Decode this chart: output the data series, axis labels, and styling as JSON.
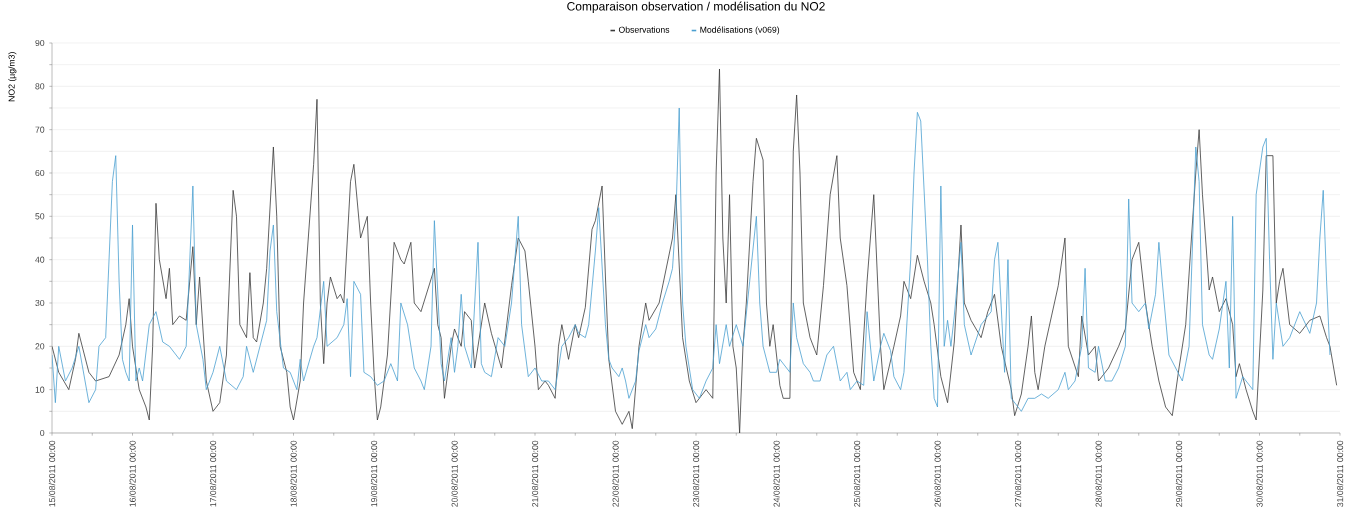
{
  "chart_data": {
    "type": "line",
    "title": "Comparaison observation / modélisation du NO2",
    "ylabel": "NO2 (µg/m3)",
    "xlim": [
      "2011-08-15T00:00",
      "2011-08-31T00:00"
    ],
    "xticks": [
      {
        "value": "2011-08-15T00:00",
        "label": "15/08/2011 00:00"
      },
      {
        "value": "2011-08-15T12:00",
        "label": null
      },
      {
        "value": "2011-08-16T00:00",
        "label": "16/08/2011 00:00"
      },
      {
        "value": "2011-08-16T12:00",
        "label": null
      },
      {
        "value": "2011-08-17T00:00",
        "label": "17/08/2011 00:00"
      },
      {
        "value": "2011-08-17T12:00",
        "label": null
      },
      {
        "value": "2011-08-18T00:00",
        "label": "18/08/2011 00:00"
      },
      {
        "value": "2011-08-18T12:00",
        "label": null
      },
      {
        "value": "2011-08-19T00:00",
        "label": "19/08/2011 00:00"
      },
      {
        "value": "2011-08-19T12:00",
        "label": null
      },
      {
        "value": "2011-08-20T00:00",
        "label": "20/08/2011 00:00"
      },
      {
        "value": "2011-08-20T12:00",
        "label": null
      },
      {
        "value": "2011-08-21T00:00",
        "label": "21/08/2011 00:00"
      },
      {
        "value": "2011-08-21T12:00",
        "label": null
      },
      {
        "value": "2011-08-22T00:00",
        "label": "22/08/2011 00:00"
      },
      {
        "value": "2011-08-22T12:00",
        "label": null
      },
      {
        "value": "2011-08-23T00:00",
        "label": "23/08/2011 00:00"
      },
      {
        "value": "2011-08-23T12:00",
        "label": null
      },
      {
        "value": "2011-08-24T00:00",
        "label": "24/08/2011 00:00"
      },
      {
        "value": "2011-08-24T12:00",
        "label": null
      },
      {
        "value": "2011-08-25T00:00",
        "label": "25/08/2011 00:00"
      },
      {
        "value": "2011-08-25T12:00",
        "label": null
      },
      {
        "value": "2011-08-26T00:00",
        "label": "26/08/2011 00:00"
      },
      {
        "value": "2011-08-26T12:00",
        "label": null
      },
      {
        "value": "2011-08-27T00:00",
        "label": "27/08/2011 00:00"
      },
      {
        "value": "2011-08-27T12:00",
        "label": null
      },
      {
        "value": "2011-08-28T00:00",
        "label": "28/08/2011 00:00"
      },
      {
        "value": "2011-08-28T12:00",
        "label": null
      },
      {
        "value": "2011-08-29T00:00",
        "label": "29/08/2011 00:00"
      },
      {
        "value": "2011-08-29T12:00",
        "label": null
      },
      {
        "value": "2011-08-30T00:00",
        "label": "30/08/2011 00:00"
      },
      {
        "value": "2011-08-30T12:00",
        "label": null
      },
      {
        "value": "2011-08-31T00:00",
        "label": "31/08/2011 00:00"
      }
    ],
    "ylim": [
      0,
      90
    ],
    "yticks": [
      0,
      {
        "value": 5,
        "label": null
      },
      10,
      {
        "value": 15,
        "label": null
      },
      20,
      {
        "value": 25,
        "label": null
      },
      30,
      {
        "value": 35,
        "label": null
      },
      40,
      {
        "value": 45,
        "label": null
      },
      50,
      {
        "value": 55,
        "label": null
      },
      60,
      {
        "value": 65,
        "label": null
      },
      70,
      {
        "value": 75,
        "label": null
      },
      80,
      {
        "value": 85,
        "label": null
      },
      90
    ],
    "grid": "y",
    "legend": "top",
    "series": [
      {
        "name": "Observations",
        "color": "#3a3a3a",
        "x": [
          "2011-08-15T00:00",
          "2011-08-15T02:00",
          "2011-08-15T05:00",
          "2011-08-15T07:00",
          "2011-08-15T08:00",
          "2011-08-15T11:00",
          "2011-08-15T13:00",
          "2011-08-15T17:00",
          "2011-08-15T20:00",
          "2011-08-15T22:00",
          "2011-08-15T23:00",
          "2011-08-16T00:00",
          "2011-08-16T02:00",
          "2011-08-16T04:00",
          "2011-08-16T05:00",
          "2011-08-16T06:00",
          "2011-08-16T07:00",
          "2011-08-16T08:00",
          "2011-08-16T10:00",
          "2011-08-16T11:00",
          "2011-08-16T12:00",
          "2011-08-16T14:00",
          "2011-08-16T16:00",
          "2011-08-16T18:00",
          "2011-08-16T19:00",
          "2011-08-16T20:00",
          "2011-08-16T21:00",
          "2011-08-16T22:00",
          "2011-08-17T00:00",
          "2011-08-17T02:00",
          "2011-08-17T04:00",
          "2011-08-17T06:00",
          "2011-08-17T07:00",
          "2011-08-17T08:00",
          "2011-08-17T10:00",
          "2011-08-17T11:00",
          "2011-08-17T12:00",
          "2011-08-17T13:00",
          "2011-08-17T15:00",
          "2011-08-17T16:00",
          "2011-08-17T18:00",
          "2011-08-17T19:00",
          "2011-08-17T20:00",
          "2011-08-17T22:00",
          "2011-08-17T23:00",
          "2011-08-18T00:00",
          "2011-08-18T02:00",
          "2011-08-18T03:00",
          "2011-08-18T06:00",
          "2011-08-18T07:00",
          "2011-08-18T08:00",
          "2011-08-18T09:00",
          "2011-08-18T10:00",
          "2011-08-18T11:00",
          "2011-08-18T13:00",
          "2011-08-18T14:00",
          "2011-08-18T15:00",
          "2011-08-18T17:00",
          "2011-08-18T18:00",
          "2011-08-18T20:00",
          "2011-08-18T22:00",
          "2011-08-18T23:00",
          "2011-08-19T00:00",
          "2011-08-19T01:00",
          "2011-08-19T02:00",
          "2011-08-19T04:00",
          "2011-08-19T06:00",
          "2011-08-19T08:00",
          "2011-08-19T09:00",
          "2011-08-19T11:00",
          "2011-08-19T12:00",
          "2011-08-19T14:00",
          "2011-08-19T16:00",
          "2011-08-19T18:00",
          "2011-08-19T19:00",
          "2011-08-19T20:00",
          "2011-08-19T21:00",
          "2011-08-19T23:00",
          "2011-08-20T00:00",
          "2011-08-20T02:00",
          "2011-08-20T03:00",
          "2011-08-20T05:00",
          "2011-08-20T06:00",
          "2011-08-20T07:00",
          "2011-08-20T09:00",
          "2011-08-20T11:00",
          "2011-08-20T14:00",
          "2011-08-20T17:00",
          "2011-08-20T19:00",
          "2011-08-20T21:00",
          "2011-08-20T22:00",
          "2011-08-21T00:00",
          "2011-08-21T01:00",
          "2011-08-21T03:00",
          "2011-08-21T04:00",
          "2011-08-21T06:00",
          "2011-08-21T07:00",
          "2011-08-21T08:00",
          "2011-08-21T10:00",
          "2011-08-21T12:00",
          "2011-08-21T13:00",
          "2011-08-21T15:00",
          "2011-08-21T17:00",
          "2011-08-21T18:00",
          "2011-08-21T20:00",
          "2011-08-21T21:00",
          "2011-08-21T22:00",
          "2011-08-22T00:00",
          "2011-08-22T02:00",
          "2011-08-22T04:00",
          "2011-08-22T05:00",
          "2011-08-22T07:00",
          "2011-08-22T09:00",
          "2011-08-22T10:00",
          "2011-08-22T13:00",
          "2011-08-22T17:00",
          "2011-08-22T18:00",
          "2011-08-22T20:00",
          "2011-08-22T22:00",
          "2011-08-23T00:00",
          "2011-08-23T03:00",
          "2011-08-23T05:00",
          "2011-08-23T06:00",
          "2011-08-23T07:00",
          "2011-08-23T08:00",
          "2011-08-23T09:00",
          "2011-08-23T10:00",
          "2011-08-23T11:00",
          "2011-08-23T12:00",
          "2011-08-23T13:00",
          "2011-08-23T14:00",
          "2011-08-23T15:00",
          "2011-08-23T17:00",
          "2011-08-23T18:00",
          "2011-08-23T20:00",
          "2011-08-23T21:00",
          "2011-08-23T22:00",
          "2011-08-23T23:00",
          "2011-08-24T01:00",
          "2011-08-24T02:00",
          "2011-08-24T04:00",
          "2011-08-24T05:00",
          "2011-08-24T06:00",
          "2011-08-24T07:00",
          "2011-08-24T08:00",
          "2011-08-24T10:00",
          "2011-08-24T12:00",
          "2011-08-24T14:00",
          "2011-08-24T16:00",
          "2011-08-24T18:00",
          "2011-08-24T19:00",
          "2011-08-24T21:00",
          "2011-08-24T23:00",
          "2011-08-25T01:00",
          "2011-08-25T03:00",
          "2011-08-25T05:00",
          "2011-08-25T07:00",
          "2011-08-25T08:00",
          "2011-08-25T11:00",
          "2011-08-25T13:00",
          "2011-08-25T14:00",
          "2011-08-25T16:00",
          "2011-08-25T18:00",
          "2011-08-25T20:00",
          "2011-08-25T22:00",
          "2011-08-25T23:00",
          "2011-08-26T01:00",
          "2011-08-26T03:00",
          "2011-08-26T05:00",
          "2011-08-26T07:00",
          "2011-08-26T08:00",
          "2011-08-26T10:00",
          "2011-08-26T13:00",
          "2011-08-26T15:00",
          "2011-08-26T17:00",
          "2011-08-26T19:00",
          "2011-08-26T22:00",
          "2011-08-26T23:00",
          "2011-08-27T01:00",
          "2011-08-27T03:00",
          "2011-08-27T04:00",
          "2011-08-27T05:00",
          "2011-08-27T06:00",
          "2011-08-27T08:00",
          "2011-08-27T10:00",
          "2011-08-27T12:00",
          "2011-08-27T14:00",
          "2011-08-27T15:00",
          "2011-08-27T18:00",
          "2011-08-27T19:00",
          "2011-08-27T21:00",
          "2011-08-27T23:00",
          "2011-08-28T00:00",
          "2011-08-28T03:00",
          "2011-08-28T06:00",
          "2011-08-28T08:00",
          "2011-08-28T10:00",
          "2011-08-28T12:00",
          "2011-08-28T14:00",
          "2011-08-28T16:00",
          "2011-08-28T18:00",
          "2011-08-28T20:00",
          "2011-08-28T22:00",
          "2011-08-29T00:00",
          "2011-08-29T02:00",
          "2011-08-29T05:00",
          "2011-08-29T06:00",
          "2011-08-29T07:00",
          "2011-08-29T09:00",
          "2011-08-29T10:00",
          "2011-08-29T12:00",
          "2011-08-29T14:00",
          "2011-08-29T16:00",
          "2011-08-29T17:00",
          "2011-08-29T18:00",
          "2011-08-29T20:00",
          "2011-08-29T22:00",
          "2011-08-29T23:00",
          "2011-08-30T01:00",
          "2011-08-30T02:00",
          "2011-08-30T04:00",
          "2011-08-30T05:00",
          "2011-08-30T06:00",
          "2011-08-30T07:00",
          "2011-08-30T09:00",
          "2011-08-30T12:00",
          "2011-08-30T15:00",
          "2011-08-30T18:00",
          "2011-08-30T20:00",
          "2011-08-30T21:00",
          "2011-08-30T23:00"
        ],
        "values": [
          20,
          14,
          10,
          17,
          23,
          14,
          12,
          13,
          18,
          25,
          31,
          20,
          10,
          6,
          3,
          20,
          53,
          40,
          31,
          38,
          25,
          27,
          26,
          43,
          25,
          36,
          24,
          12,
          5,
          7,
          18,
          56,
          50,
          25,
          22,
          37,
          22,
          21,
          30,
          38,
          66,
          50,
          20,
          14,
          6,
          3,
          12,
          30,
          62,
          77,
          30,
          16,
          30,
          36,
          31,
          32,
          30,
          58,
          62,
          45,
          50,
          30,
          14,
          3,
          6,
          18,
          44,
          40,
          39,
          44,
          30,
          28,
          33,
          38,
          25,
          22,
          8,
          20,
          24,
          20,
          28,
          26,
          15,
          20,
          30,
          23,
          15,
          34,
          45,
          42,
          35,
          20,
          10,
          12,
          11,
          8,
          20,
          25,
          17,
          25,
          22,
          29,
          47,
          49,
          57,
          36,
          17,
          5,
          2,
          5,
          1,
          20,
          30,
          26,
          30,
          45,
          55,
          22,
          12,
          7,
          10,
          8,
          60,
          84,
          45,
          30,
          55,
          20,
          15,
          0,
          20,
          30,
          58,
          68,
          63,
          30,
          20,
          25,
          11,
          8,
          8,
          65,
          78,
          60,
          30,
          22,
          18,
          34,
          55,
          64,
          45,
          34,
          14,
          10,
          35,
          55,
          20,
          10,
          20,
          27,
          35,
          31,
          41,
          35,
          30,
          25,
          13,
          7,
          21,
          48,
          30,
          26,
          22,
          28,
          32,
          20,
          10,
          4,
          9,
          20,
          27,
          14,
          10,
          20,
          27,
          34,
          45,
          20,
          13,
          27,
          18,
          20,
          12,
          15,
          20,
          24,
          40,
          44,
          30,
          20,
          12,
          6,
          4,
          15,
          25,
          60,
          70,
          55,
          33,
          36,
          28,
          31,
          25,
          13,
          16,
          10,
          5,
          3,
          33,
          64,
          64,
          30,
          35,
          38,
          25,
          23,
          26,
          27,
          22,
          20,
          11
        ]
      },
      {
        "name": "Modélisations (v069)",
        "color": "#4a9fd0",
        "x": [
          "2011-08-15T00:00",
          "2011-08-15T01:00",
          "2011-08-15T02:00",
          "2011-08-15T04:00",
          "2011-08-15T06:00",
          "2011-08-15T08:00",
          "2011-08-15T11:00",
          "2011-08-15T13:00",
          "2011-08-15T14:00",
          "2011-08-15T16:00",
          "2011-08-15T17:00",
          "2011-08-15T18:00",
          "2011-08-15T19:00",
          "2011-08-15T20:00",
          "2011-08-15T21:00",
          "2011-08-15T22:00",
          "2011-08-15T23:00",
          "2011-08-16T00:00",
          "2011-08-16T01:00",
          "2011-08-16T02:00",
          "2011-08-16T03:00",
          "2011-08-16T05:00",
          "2011-08-16T07:00",
          "2011-08-16T09:00",
          "2011-08-16T11:00",
          "2011-08-16T14:00",
          "2011-08-16T16:00",
          "2011-08-16T18:00",
          "2011-08-16T19:00",
          "2011-08-16T21:00",
          "2011-08-16T22:00",
          "2011-08-17T00:00",
          "2011-08-17T02:00",
          "2011-08-17T04:00",
          "2011-08-17T07:00",
          "2011-08-17T09:00",
          "2011-08-17T10:00",
          "2011-08-17T12:00",
          "2011-08-17T14:00",
          "2011-08-17T16:00",
          "2011-08-17T17:00",
          "2011-08-17T18:00",
          "2011-08-17T19:00",
          "2011-08-17T21:00",
          "2011-08-17T23:00",
          "2011-08-18T01:00",
          "2011-08-18T02:00",
          "2011-08-18T03:00",
          "2011-08-18T06:00",
          "2011-08-18T07:00",
          "2011-08-18T09:00",
          "2011-08-18T10:00",
          "2011-08-18T13:00",
          "2011-08-18T15:00",
          "2011-08-18T16:00",
          "2011-08-18T17:00",
          "2011-08-18T18:00",
          "2011-08-18T20:00",
          "2011-08-18T21:00",
          "2011-08-18T23:00",
          "2011-08-19T01:00",
          "2011-08-19T03:00",
          "2011-08-19T05:00",
          "2011-08-19T07:00",
          "2011-08-19T08:00",
          "2011-08-19T10:00",
          "2011-08-19T12:00",
          "2011-08-19T14:00",
          "2011-08-19T15:00",
          "2011-08-19T17:00",
          "2011-08-19T18:00",
          "2011-08-19T20:00",
          "2011-08-19T21:00",
          "2011-08-19T23:00",
          "2011-08-20T00:00",
          "2011-08-20T01:00",
          "2011-08-20T02:00",
          "2011-08-20T03:00",
          "2011-08-20T05:00",
          "2011-08-20T07:00",
          "2011-08-20T08:00",
          "2011-08-20T09:00",
          "2011-08-20T11:00",
          "2011-08-20T13:00",
          "2011-08-20T15:00",
          "2011-08-20T17:00",
          "2011-08-20T19:00",
          "2011-08-20T20:00",
          "2011-08-20T22:00",
          "2011-08-21T00:00",
          "2011-08-21T02:00",
          "2011-08-21T04:00",
          "2011-08-21T06:00",
          "2011-08-21T08:00",
          "2011-08-21T10:00",
          "2011-08-21T12:00",
          "2011-08-21T13:00",
          "2011-08-21T15:00",
          "2011-08-21T16:00",
          "2011-08-21T18:00",
          "2011-08-21T19:00",
          "2011-08-21T21:00",
          "2011-08-21T22:00",
          "2011-08-21T23:00",
          "2011-08-22T01:00",
          "2011-08-22T02:00",
          "2011-08-22T03:00",
          "2011-08-22T04:00",
          "2011-08-22T06:00",
          "2011-08-22T07:00",
          "2011-08-22T09:00",
          "2011-08-22T10:00",
          "2011-08-22T12:00",
          "2011-08-22T14:00",
          "2011-08-22T16:00",
          "2011-08-22T17:00",
          "2011-08-22T18:00",
          "2011-08-22T19:00",
          "2011-08-22T20:00",
          "2011-08-22T21:00",
          "2011-08-22T23:00",
          "2011-08-23T01:00",
          "2011-08-23T03:00",
          "2011-08-23T05:00",
          "2011-08-23T06:00",
          "2011-08-23T07:00",
          "2011-08-23T09:00",
          "2011-08-23T10:00",
          "2011-08-23T12:00",
          "2011-08-23T14:00",
          "2011-08-23T16:00",
          "2011-08-23T18:00",
          "2011-08-23T19:00",
          "2011-08-23T20:00",
          "2011-08-23T22:00",
          "2011-08-24T00:00",
          "2011-08-24T01:00",
          "2011-08-24T04:00",
          "2011-08-24T05:00",
          "2011-08-24T06:00",
          "2011-08-24T08:00",
          "2011-08-24T10:00",
          "2011-08-24T11:00",
          "2011-08-24T13:00",
          "2011-08-24T15:00",
          "2011-08-24T17:00",
          "2011-08-24T19:00",
          "2011-08-24T21:00",
          "2011-08-24T22:00",
          "2011-08-25T00:00",
          "2011-08-25T02:00",
          "2011-08-25T03:00",
          "2011-08-25T05:00",
          "2011-08-25T07:00",
          "2011-08-25T08:00",
          "2011-08-25T10:00",
          "2011-08-25T11:00",
          "2011-08-25T13:00",
          "2011-08-25T14:00",
          "2011-08-25T16:00",
          "2011-08-25T17:00",
          "2011-08-25T18:00",
          "2011-08-25T19:00",
          "2011-08-25T21:00",
          "2011-08-25T22:00",
          "2011-08-25T23:00",
          "2011-08-26T00:00",
          "2011-08-26T01:00",
          "2011-08-26T02:00",
          "2011-08-26T03:00",
          "2011-08-26T04:00",
          "2011-08-26T05:00",
          "2011-08-26T07:00",
          "2011-08-26T08:00",
          "2011-08-26T10:00",
          "2011-08-26T13:00",
          "2011-08-26T16:00",
          "2011-08-26T17:00",
          "2011-08-26T18:00",
          "2011-08-26T20:00",
          "2011-08-26T21:00",
          "2011-08-26T22:00",
          "2011-08-27T00:00",
          "2011-08-27T01:00",
          "2011-08-27T03:00",
          "2011-08-27T05:00",
          "2011-08-27T07:00",
          "2011-08-27T09:00",
          "2011-08-27T12:00",
          "2011-08-27T14:00",
          "2011-08-27T15:00",
          "2011-08-27T17:00",
          "2011-08-27T19:00",
          "2011-08-27T20:00",
          "2011-08-27T21:00",
          "2011-08-27T23:00",
          "2011-08-28T00:00",
          "2011-08-28T02:00",
          "2011-08-28T04:00",
          "2011-08-28T06:00",
          "2011-08-28T08:00",
          "2011-08-28T09:00",
          "2011-08-28T10:00",
          "2011-08-28T12:00",
          "2011-08-28T14:00",
          "2011-08-28T15:00",
          "2011-08-28T17:00",
          "2011-08-28T18:00",
          "2011-08-28T19:00",
          "2011-08-28T21:00",
          "2011-08-28T23:00",
          "2011-08-29T01:00",
          "2011-08-29T03:00",
          "2011-08-29T05:00",
          "2011-08-29T06:00",
          "2011-08-29T07:00",
          "2011-08-29T09:00",
          "2011-08-29T10:00",
          "2011-08-29T12:00",
          "2011-08-29T14:00",
          "2011-08-29T15:00",
          "2011-08-29T16:00",
          "2011-08-29T17:00",
          "2011-08-29T19:00",
          "2011-08-29T20:00",
          "2011-08-29T22:00",
          "2011-08-29T23:00",
          "2011-08-30T01:00",
          "2011-08-30T02:00",
          "2011-08-30T03:00",
          "2011-08-30T04:00",
          "2011-08-30T05:00",
          "2011-08-30T07:00",
          "2011-08-30T09:00",
          "2011-08-30T12:00",
          "2011-08-30T15:00",
          "2011-08-30T17:00",
          "2011-08-30T18:00",
          "2011-08-30T19:00",
          "2011-08-30T20:00",
          "2011-08-30T21:00"
        ],
        "values": [
          18,
          7,
          20,
          12,
          15,
          20,
          7,
          10,
          20,
          22,
          40,
          58,
          64,
          35,
          17,
          14,
          12,
          48,
          12,
          15,
          12,
          25,
          28,
          21,
          20,
          17,
          20,
          57,
          25,
          17,
          10,
          14,
          20,
          12,
          10,
          13,
          20,
          14,
          20,
          26,
          42,
          48,
          28,
          15,
          14,
          10,
          17,
          12,
          20,
          22,
          35,
          20,
          22,
          25,
          31,
          13,
          35,
          32,
          14,
          13,
          11,
          12,
          16,
          12,
          30,
          25,
          15,
          12,
          10,
          20,
          49,
          16,
          12,
          22,
          14,
          20,
          32,
          20,
          15,
          44,
          16,
          14,
          13,
          22,
          20,
          30,
          50,
          25,
          13,
          15,
          12,
          12,
          10,
          20,
          22,
          25,
          23,
          22,
          25,
          42,
          52,
          25,
          17,
          15,
          13,
          15,
          12,
          8,
          12,
          19,
          25,
          22,
          24,
          30,
          35,
          38,
          50,
          75,
          30,
          20,
          10,
          8,
          12,
          15,
          25,
          16,
          25,
          20,
          25,
          20,
          35,
          50,
          30,
          20,
          14,
          14,
          17,
          14,
          30,
          22,
          16,
          14,
          12,
          12,
          18,
          20,
          12,
          14,
          10,
          12,
          11,
          28,
          12,
          20,
          23,
          19,
          13,
          10,
          14,
          40,
          60,
          74,
          72,
          40,
          20,
          8,
          6,
          57,
          20,
          26,
          20,
          27,
          44,
          25,
          18,
          25,
          28,
          40,
          44,
          14,
          40,
          8,
          6,
          5,
          8,
          8,
          9,
          8,
          10,
          14,
          10,
          12,
          20,
          38,
          15,
          14,
          20,
          12,
          12,
          15,
          20,
          54,
          30,
          28,
          30,
          24,
          32,
          44,
          35,
          18,
          15,
          12,
          20,
          66,
          58,
          25,
          18,
          17,
          24,
          35,
          15,
          50,
          8,
          13,
          12,
          10,
          55,
          66,
          68,
          40,
          17,
          30,
          20,
          22,
          28,
          23,
          30,
          45,
          56,
          35,
          18
        ]
      }
    ]
  }
}
